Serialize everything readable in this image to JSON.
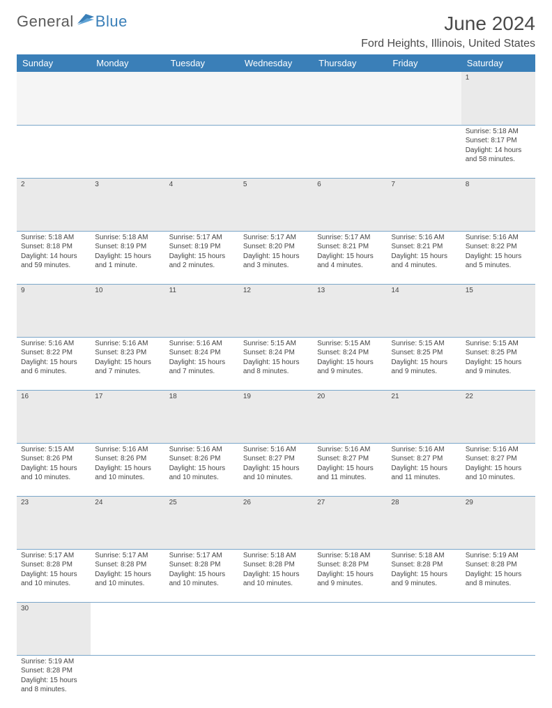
{
  "brand": {
    "general": "General",
    "blue": "Blue"
  },
  "title": "June 2024",
  "location": "Ford Heights, Illinois, United States",
  "colors": {
    "header_bg": "#3a7fb8",
    "header_text": "#ffffff",
    "daynum_bg": "#eaeaea",
    "border": "#7aa6c9",
    "logo_gray": "#5a5a5a",
    "logo_blue": "#3a7fb8"
  },
  "weekdays": [
    "Sunday",
    "Monday",
    "Tuesday",
    "Wednesday",
    "Thursday",
    "Friday",
    "Saturday"
  ],
  "weeks": [
    [
      null,
      null,
      null,
      null,
      null,
      null,
      {
        "n": "1",
        "sunrise": "Sunrise: 5:18 AM",
        "sunset": "Sunset: 8:17 PM",
        "day1": "Daylight: 14 hours",
        "day2": "and 58 minutes."
      }
    ],
    [
      {
        "n": "2",
        "sunrise": "Sunrise: 5:18 AM",
        "sunset": "Sunset: 8:18 PM",
        "day1": "Daylight: 14 hours",
        "day2": "and 59 minutes."
      },
      {
        "n": "3",
        "sunrise": "Sunrise: 5:18 AM",
        "sunset": "Sunset: 8:19 PM",
        "day1": "Daylight: 15 hours",
        "day2": "and 1 minute."
      },
      {
        "n": "4",
        "sunrise": "Sunrise: 5:17 AM",
        "sunset": "Sunset: 8:19 PM",
        "day1": "Daylight: 15 hours",
        "day2": "and 2 minutes."
      },
      {
        "n": "5",
        "sunrise": "Sunrise: 5:17 AM",
        "sunset": "Sunset: 8:20 PM",
        "day1": "Daylight: 15 hours",
        "day2": "and 3 minutes."
      },
      {
        "n": "6",
        "sunrise": "Sunrise: 5:17 AM",
        "sunset": "Sunset: 8:21 PM",
        "day1": "Daylight: 15 hours",
        "day2": "and 4 minutes."
      },
      {
        "n": "7",
        "sunrise": "Sunrise: 5:16 AM",
        "sunset": "Sunset: 8:21 PM",
        "day1": "Daylight: 15 hours",
        "day2": "and 4 minutes."
      },
      {
        "n": "8",
        "sunrise": "Sunrise: 5:16 AM",
        "sunset": "Sunset: 8:22 PM",
        "day1": "Daylight: 15 hours",
        "day2": "and 5 minutes."
      }
    ],
    [
      {
        "n": "9",
        "sunrise": "Sunrise: 5:16 AM",
        "sunset": "Sunset: 8:22 PM",
        "day1": "Daylight: 15 hours",
        "day2": "and 6 minutes."
      },
      {
        "n": "10",
        "sunrise": "Sunrise: 5:16 AM",
        "sunset": "Sunset: 8:23 PM",
        "day1": "Daylight: 15 hours",
        "day2": "and 7 minutes."
      },
      {
        "n": "11",
        "sunrise": "Sunrise: 5:16 AM",
        "sunset": "Sunset: 8:24 PM",
        "day1": "Daylight: 15 hours",
        "day2": "and 7 minutes."
      },
      {
        "n": "12",
        "sunrise": "Sunrise: 5:15 AM",
        "sunset": "Sunset: 8:24 PM",
        "day1": "Daylight: 15 hours",
        "day2": "and 8 minutes."
      },
      {
        "n": "13",
        "sunrise": "Sunrise: 5:15 AM",
        "sunset": "Sunset: 8:24 PM",
        "day1": "Daylight: 15 hours",
        "day2": "and 9 minutes."
      },
      {
        "n": "14",
        "sunrise": "Sunrise: 5:15 AM",
        "sunset": "Sunset: 8:25 PM",
        "day1": "Daylight: 15 hours",
        "day2": "and 9 minutes."
      },
      {
        "n": "15",
        "sunrise": "Sunrise: 5:15 AM",
        "sunset": "Sunset: 8:25 PM",
        "day1": "Daylight: 15 hours",
        "day2": "and 9 minutes."
      }
    ],
    [
      {
        "n": "16",
        "sunrise": "Sunrise: 5:15 AM",
        "sunset": "Sunset: 8:26 PM",
        "day1": "Daylight: 15 hours",
        "day2": "and 10 minutes."
      },
      {
        "n": "17",
        "sunrise": "Sunrise: 5:16 AM",
        "sunset": "Sunset: 8:26 PM",
        "day1": "Daylight: 15 hours",
        "day2": "and 10 minutes."
      },
      {
        "n": "18",
        "sunrise": "Sunrise: 5:16 AM",
        "sunset": "Sunset: 8:26 PM",
        "day1": "Daylight: 15 hours",
        "day2": "and 10 minutes."
      },
      {
        "n": "19",
        "sunrise": "Sunrise: 5:16 AM",
        "sunset": "Sunset: 8:27 PM",
        "day1": "Daylight: 15 hours",
        "day2": "and 10 minutes."
      },
      {
        "n": "20",
        "sunrise": "Sunrise: 5:16 AM",
        "sunset": "Sunset: 8:27 PM",
        "day1": "Daylight: 15 hours",
        "day2": "and 11 minutes."
      },
      {
        "n": "21",
        "sunrise": "Sunrise: 5:16 AM",
        "sunset": "Sunset: 8:27 PM",
        "day1": "Daylight: 15 hours",
        "day2": "and 11 minutes."
      },
      {
        "n": "22",
        "sunrise": "Sunrise: 5:16 AM",
        "sunset": "Sunset: 8:27 PM",
        "day1": "Daylight: 15 hours",
        "day2": "and 10 minutes."
      }
    ],
    [
      {
        "n": "23",
        "sunrise": "Sunrise: 5:17 AM",
        "sunset": "Sunset: 8:28 PM",
        "day1": "Daylight: 15 hours",
        "day2": "and 10 minutes."
      },
      {
        "n": "24",
        "sunrise": "Sunrise: 5:17 AM",
        "sunset": "Sunset: 8:28 PM",
        "day1": "Daylight: 15 hours",
        "day2": "and 10 minutes."
      },
      {
        "n": "25",
        "sunrise": "Sunrise: 5:17 AM",
        "sunset": "Sunset: 8:28 PM",
        "day1": "Daylight: 15 hours",
        "day2": "and 10 minutes."
      },
      {
        "n": "26",
        "sunrise": "Sunrise: 5:18 AM",
        "sunset": "Sunset: 8:28 PM",
        "day1": "Daylight: 15 hours",
        "day2": "and 10 minutes."
      },
      {
        "n": "27",
        "sunrise": "Sunrise: 5:18 AM",
        "sunset": "Sunset: 8:28 PM",
        "day1": "Daylight: 15 hours",
        "day2": "and 9 minutes."
      },
      {
        "n": "28",
        "sunrise": "Sunrise: 5:18 AM",
        "sunset": "Sunset: 8:28 PM",
        "day1": "Daylight: 15 hours",
        "day2": "and 9 minutes."
      },
      {
        "n": "29",
        "sunrise": "Sunrise: 5:19 AM",
        "sunset": "Sunset: 8:28 PM",
        "day1": "Daylight: 15 hours",
        "day2": "and 8 minutes."
      }
    ],
    [
      {
        "n": "30",
        "sunrise": "Sunrise: 5:19 AM",
        "sunset": "Sunset: 8:28 PM",
        "day1": "Daylight: 15 hours",
        "day2": "and 8 minutes."
      },
      null,
      null,
      null,
      null,
      null,
      null
    ]
  ]
}
